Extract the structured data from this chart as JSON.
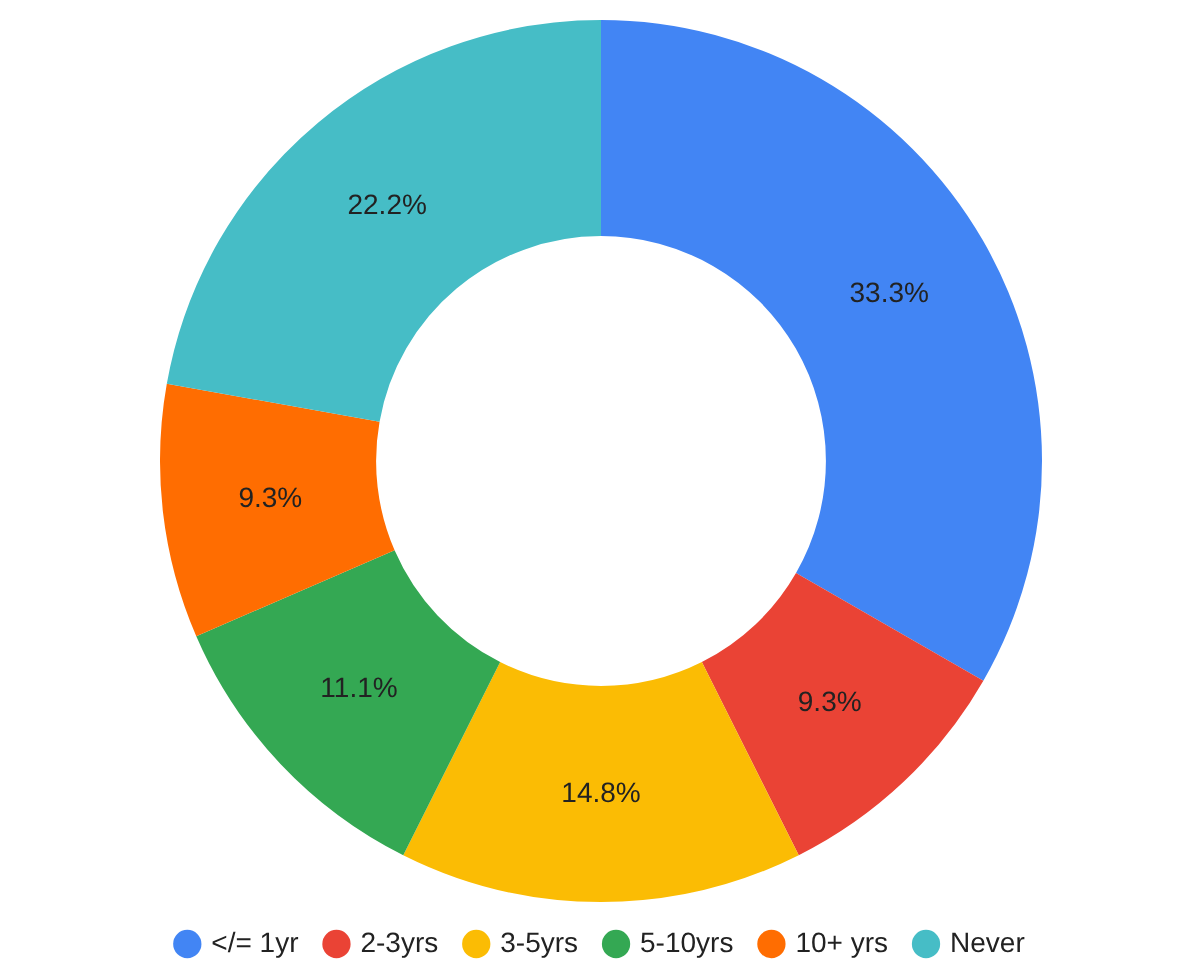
{
  "chart_data": {
    "type": "donut",
    "categories": [
      "</= 1yr",
      "2-3yrs",
      "3-5yrs",
      "5-10yrs",
      "10+ yrs",
      "Never"
    ],
    "values": [
      33.3,
      9.3,
      14.8,
      11.1,
      9.3,
      22.2
    ],
    "value_labels": [
      "33.3%",
      "9.3%",
      "14.8%",
      "11.1%",
      "9.3%",
      "22.2%"
    ],
    "colors": [
      "#4285f4",
      "#ea4335",
      "#fbbc04",
      "#34a853",
      "#ff6d01",
      "#46bdc6"
    ],
    "legend": "bottom"
  }
}
